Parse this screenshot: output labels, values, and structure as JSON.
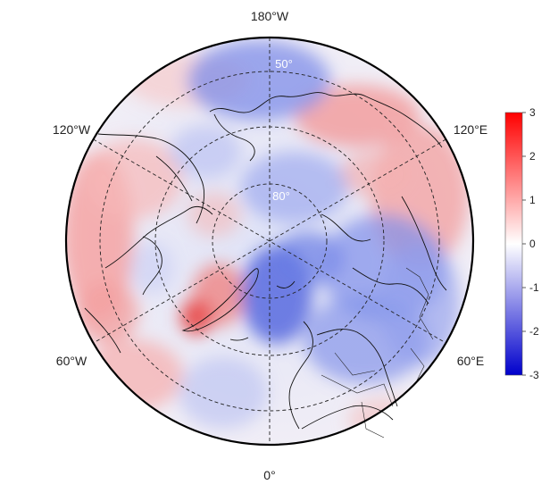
{
  "map": {
    "projection": "north-polar-stereographic",
    "longitude_labels": {
      "top": "180°W",
      "bottom": "0°",
      "upper_left": "120°W",
      "upper_right": "120°E",
      "lower_left": "60°W",
      "lower_right": "60°E"
    },
    "latitude_labels": [
      "50°",
      "80°"
    ],
    "graticule": "dashed",
    "colorbar": {
      "min": -3,
      "max": 3,
      "ticks": [
        "3",
        "2",
        "1",
        "0",
        "-1",
        "-2",
        "-3"
      ],
      "colors": {
        "high": "#ff0000",
        "mid": "#ffffff",
        "low": "#0000cc"
      }
    },
    "field_colors": {
      "warm": "#f08080",
      "cool": "#5b6fe0",
      "neutral": "#f3f3fa",
      "land_line": "#111111"
    }
  }
}
